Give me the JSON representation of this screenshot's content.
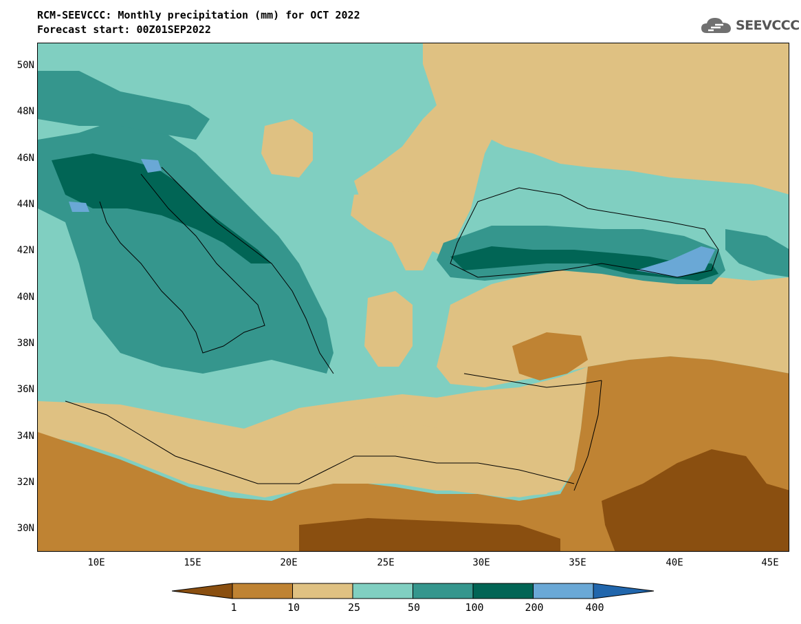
{
  "header": {
    "title": "RCM-SEEVCCC: Monthly precipitation (mm) for OCT 2022",
    "subtitle": "Forecast start: 00Z01SEP2022",
    "logo_text": "SEEVCCC",
    "logo_icon": "cloud-icon"
  },
  "map": {
    "lat_ticks": [
      "50N",
      "48N",
      "46N",
      "44N",
      "42N",
      "40N",
      "38N",
      "36N",
      "34N",
      "32N",
      "30N"
    ],
    "lon_ticks": [
      "10E",
      "15E",
      "20E",
      "25E",
      "30E",
      "35E",
      "40E",
      "45E"
    ],
    "lat_range": [
      29,
      51
    ],
    "lon_range": [
      7,
      46
    ]
  },
  "legend": {
    "bins": [
      {
        "color": "#8a4f10"
      },
      {
        "color": "#bf8333"
      },
      {
        "color": "#dfc182"
      },
      {
        "color": "#80cfc1"
      },
      {
        "color": "#35968d"
      },
      {
        "color": "#016555"
      },
      {
        "color": "#6aa8d6"
      },
      {
        "color": "#2166ac"
      }
    ],
    "labels": [
      "1",
      "10",
      "25",
      "50",
      "100",
      "200",
      "400"
    ]
  },
  "colors": {
    "lt1": "#8a4f10",
    "c1_10": "#bf8333",
    "c10_25": "#dfc182",
    "c25_50": "#80cfc1",
    "c50_100": "#35968d",
    "c100_200": "#016555",
    "c200_400": "#6aa8d6",
    "gt400": "#2166ac"
  }
}
